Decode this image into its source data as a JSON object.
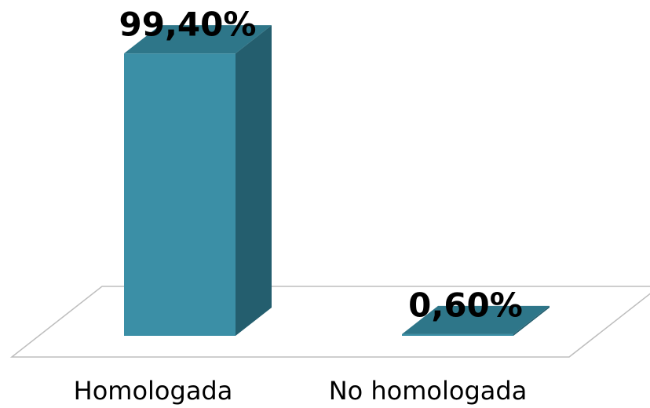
{
  "chart_data": {
    "type": "bar3d",
    "categories": [
      "Homologada",
      "No homologada"
    ],
    "values": [
      99.4,
      0.6
    ],
    "value_labels": [
      "99,40%",
      "0,60%"
    ],
    "colors": {
      "front": "#3b8fa6",
      "side": "#245e6e",
      "top": "#2e7689"
    }
  }
}
